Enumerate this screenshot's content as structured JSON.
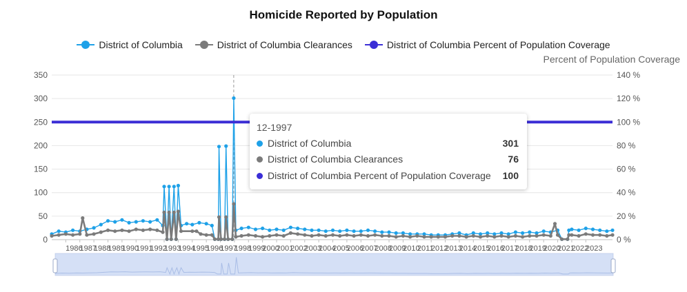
{
  "chart_data": {
    "type": "line",
    "title": "Homicide Reported by Population",
    "y2label": "Percent of Population Coverage",
    "y_ticks": [
      0,
      50,
      100,
      150,
      200,
      250,
      300,
      350
    ],
    "y2_ticks": [
      "0 %",
      "20 %",
      "40 %",
      "60 %",
      "80 %",
      "100 %",
      "120 %",
      "140 %"
    ],
    "ylim": [
      0,
      350
    ],
    "y2lim": [
      0,
      140
    ],
    "x_range": [
      1985,
      2024.9
    ],
    "x_tick_labels": [
      "1986",
      "1987",
      "1988",
      "1989",
      "1990",
      "1991",
      "1992",
      "1993",
      "1994",
      "1995",
      "1996",
      "1997",
      "1998",
      "1999",
      "2000",
      "2001",
      "2002",
      "2003",
      "2004",
      "2005",
      "2006",
      "2007",
      "2008",
      "2009",
      "2010",
      "2011",
      "2012",
      "2013",
      "2014",
      "2015",
      "2016",
      "2017",
      "2018",
      "2019",
      "2020",
      "2021",
      "2022",
      "2023"
    ],
    "legend": "top-center",
    "series": [
      {
        "name": "District of Columbia",
        "color": "#1ea1e8",
        "points": [
          [
            1985.0,
            12
          ],
          [
            1985.5,
            18
          ],
          [
            1986.0,
            16
          ],
          [
            1986.5,
            20
          ],
          [
            1987.0,
            18
          ],
          [
            1987.5,
            22
          ],
          [
            1988.0,
            25
          ],
          [
            1988.5,
            32
          ],
          [
            1989.0,
            40
          ],
          [
            1989.5,
            38
          ],
          [
            1990.0,
            42
          ],
          [
            1990.5,
            36
          ],
          [
            1991.0,
            38
          ],
          [
            1991.5,
            40
          ],
          [
            1992.0,
            38
          ],
          [
            1992.5,
            42
          ],
          [
            1992.9,
            30
          ],
          [
            1993.0,
            113
          ],
          [
            1993.2,
            1
          ],
          [
            1993.35,
            113
          ],
          [
            1993.5,
            1
          ],
          [
            1993.7,
            113
          ],
          [
            1993.85,
            1
          ],
          [
            1994.0,
            115
          ],
          [
            1994.2,
            30
          ],
          [
            1994.6,
            34
          ],
          [
            1995.0,
            32
          ],
          [
            1995.5,
            36
          ],
          [
            1996.0,
            34
          ],
          [
            1996.4,
            30
          ],
          [
            1996.6,
            1
          ],
          [
            1996.85,
            1
          ],
          [
            1996.9,
            198
          ],
          [
            1997.05,
            1
          ],
          [
            1997.3,
            1
          ],
          [
            1997.4,
            199
          ],
          [
            1997.55,
            1
          ],
          [
            1997.85,
            1
          ],
          [
            1997.95,
            301
          ],
          [
            1998.1,
            20
          ],
          [
            1998.5,
            24
          ],
          [
            1999.0,
            26
          ],
          [
            1999.5,
            22
          ],
          [
            2000.0,
            24
          ],
          [
            2000.5,
            20
          ],
          [
            2001.0,
            22
          ],
          [
            2001.5,
            20
          ],
          [
            2002.0,
            26
          ],
          [
            2002.5,
            24
          ],
          [
            2003.0,
            22
          ],
          [
            2003.5,
            20
          ],
          [
            2004.0,
            20
          ],
          [
            2004.5,
            18
          ],
          [
            2005.0,
            20
          ],
          [
            2005.5,
            18
          ],
          [
            2006.0,
            20
          ],
          [
            2006.5,
            18
          ],
          [
            2007.0,
            18
          ],
          [
            2007.5,
            20
          ],
          [
            2008.0,
            18
          ],
          [
            2008.5,
            16
          ],
          [
            2009.0,
            16
          ],
          [
            2009.5,
            14
          ],
          [
            2010.0,
            14
          ],
          [
            2010.5,
            12
          ],
          [
            2011.0,
            12
          ],
          [
            2011.5,
            12
          ],
          [
            2012.0,
            10
          ],
          [
            2012.5,
            10
          ],
          [
            2013.0,
            10
          ],
          [
            2013.5,
            12
          ],
          [
            2014.0,
            14
          ],
          [
            2014.5,
            10
          ],
          [
            2015.0,
            14
          ],
          [
            2015.5,
            12
          ],
          [
            2016.0,
            14
          ],
          [
            2016.5,
            12
          ],
          [
            2017.0,
            14
          ],
          [
            2017.5,
            12
          ],
          [
            2018.0,
            16
          ],
          [
            2018.5,
            14
          ],
          [
            2019.0,
            16
          ],
          [
            2019.5,
            14
          ],
          [
            2020.0,
            18
          ],
          [
            2020.5,
            16
          ],
          [
            2021.0,
            20
          ],
          [
            2021.3,
            1
          ],
          [
            2021.7,
            1
          ],
          [
            2021.8,
            20
          ],
          [
            2022.0,
            22
          ],
          [
            2022.5,
            20
          ],
          [
            2023.0,
            24
          ],
          [
            2023.5,
            22
          ],
          [
            2024.0,
            20
          ],
          [
            2024.5,
            18
          ],
          [
            2024.9,
            20
          ]
        ]
      },
      {
        "name": "District of Columbia Clearances",
        "color": "#7b7b7b",
        "points": [
          [
            1985.0,
            8
          ],
          [
            1985.5,
            10
          ],
          [
            1986.0,
            12
          ],
          [
            1986.5,
            10
          ],
          [
            1987.0,
            12
          ],
          [
            1987.2,
            46
          ],
          [
            1987.5,
            10
          ],
          [
            1988.0,
            12
          ],
          [
            1988.5,
            16
          ],
          [
            1989.0,
            20
          ],
          [
            1989.5,
            18
          ],
          [
            1990.0,
            20
          ],
          [
            1990.5,
            18
          ],
          [
            1991.0,
            22
          ],
          [
            1991.5,
            20
          ],
          [
            1992.0,
            22
          ],
          [
            1992.5,
            20
          ],
          [
            1992.9,
            16
          ],
          [
            1993.0,
            58
          ],
          [
            1993.2,
            1
          ],
          [
            1993.35,
            58
          ],
          [
            1993.5,
            1
          ],
          [
            1993.7,
            58
          ],
          [
            1993.85,
            1
          ],
          [
            1994.0,
            60
          ],
          [
            1994.2,
            18
          ],
          [
            1995.0,
            18
          ],
          [
            1995.3,
            18
          ],
          [
            1995.6,
            12
          ],
          [
            1996.0,
            10
          ],
          [
            1996.4,
            10
          ],
          [
            1996.6,
            1
          ],
          [
            1996.85,
            1
          ],
          [
            1996.9,
            48
          ],
          [
            1997.05,
            1
          ],
          [
            1997.3,
            1
          ],
          [
            1997.4,
            48
          ],
          [
            1997.55,
            1
          ],
          [
            1997.85,
            1
          ],
          [
            1997.95,
            76
          ],
          [
            1998.1,
            6
          ],
          [
            1998.5,
            8
          ],
          [
            1999.0,
            10
          ],
          [
            1999.5,
            8
          ],
          [
            2000.0,
            6
          ],
          [
            2000.5,
            8
          ],
          [
            2001.0,
            10
          ],
          [
            2001.5,
            8
          ],
          [
            2002.0,
            14
          ],
          [
            2002.5,
            12
          ],
          [
            2003.0,
            10
          ],
          [
            2003.5,
            8
          ],
          [
            2004.0,
            10
          ],
          [
            2004.5,
            8
          ],
          [
            2005.0,
            10
          ],
          [
            2005.5,
            8
          ],
          [
            2006.0,
            10
          ],
          [
            2006.5,
            8
          ],
          [
            2007.0,
            10
          ],
          [
            2007.5,
            8
          ],
          [
            2008.0,
            10
          ],
          [
            2008.5,
            8
          ],
          [
            2009.0,
            8
          ],
          [
            2009.5,
            6
          ],
          [
            2010.0,
            8
          ],
          [
            2010.5,
            6
          ],
          [
            2011.0,
            8
          ],
          [
            2011.5,
            6
          ],
          [
            2012.0,
            6
          ],
          [
            2012.5,
            6
          ],
          [
            2013.0,
            6
          ],
          [
            2013.5,
            8
          ],
          [
            2014.0,
            8
          ],
          [
            2014.5,
            6
          ],
          [
            2015.0,
            8
          ],
          [
            2015.5,
            6
          ],
          [
            2016.0,
            8
          ],
          [
            2016.5,
            6
          ],
          [
            2017.0,
            8
          ],
          [
            2017.5,
            6
          ],
          [
            2018.0,
            8
          ],
          [
            2018.5,
            6
          ],
          [
            2019.0,
            8
          ],
          [
            2019.5,
            8
          ],
          [
            2020.0,
            10
          ],
          [
            2020.5,
            8
          ],
          [
            2020.8,
            34
          ],
          [
            2021.0,
            10
          ],
          [
            2021.3,
            1
          ],
          [
            2021.7,
            1
          ],
          [
            2021.8,
            10
          ],
          [
            2022.0,
            10
          ],
          [
            2022.5,
            8
          ],
          [
            2023.0,
            12
          ],
          [
            2023.5,
            10
          ],
          [
            2024.0,
            10
          ],
          [
            2024.5,
            8
          ],
          [
            2024.9,
            10
          ]
        ]
      },
      {
        "name": "District of Columbia Percent of Population Coverage",
        "color": "#3b2ed6",
        "axis": "right",
        "points": [
          [
            1985.0,
            100
          ],
          [
            2024.9,
            100
          ]
        ]
      }
    ],
    "tooltip": {
      "x": 1997.95,
      "title": "12-1997",
      "rows": [
        {
          "name": "District of Columbia",
          "value": "301",
          "color": "#1ea1e8"
        },
        {
          "name": "District of Columbia Clearances",
          "value": "76",
          "color": "#7b7b7b"
        },
        {
          "name": "District of Columbia Percent of Population Coverage",
          "value": "100",
          "color": "#3b2ed6"
        }
      ]
    }
  }
}
